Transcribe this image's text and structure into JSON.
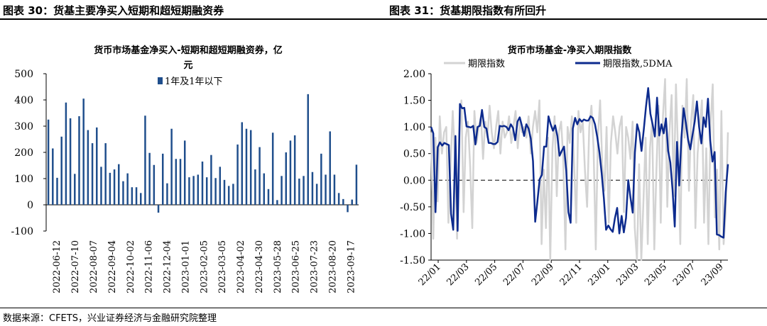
{
  "header": {
    "left_title": "图表 30：货基主要净买入短期和超短期融资券",
    "right_title": "图表 31：货基期限指数有所回升"
  },
  "footer": {
    "source": "数据来源：CFETS，兴业证券经济与金融研究院整理"
  },
  "chart_data": [
    {
      "type": "bar",
      "title": "货币市场基金净买入-短期和超短期融资券，亿元",
      "title_line1": "货币市场基金净买入-短期和超短期融资券，亿",
      "title_line2": "元",
      "legend": "1年及1年以下",
      "legend_position": "top-center",
      "ylim": [
        -100,
        500
      ],
      "yticks": [
        "500",
        "400",
        "300",
        "200",
        "100",
        "0",
        "-100"
      ],
      "xtick_labels": [
        "2022-06-12",
        "2022-07-10",
        "2022-08-07",
        "2022-09-04",
        "2022-10-02",
        "2022-11-06",
        "2022-12-04",
        "2023-01-01",
        "2023-02-05",
        "2023-03-05",
        "2023-04-02",
        "2023-04-30",
        "2023-05-28",
        "2023-06-25",
        "2023-07-23",
        "2023-08-20",
        "2023-09-17"
      ],
      "color": "#1f4e8c",
      "series": [
        {
          "values": [
            325,
            215,
            103,
            260,
            390,
            330,
            118,
            338,
            405,
            285,
            235,
            295,
            145,
            235,
            122,
            135,
            155,
            90,
            120,
            67,
            67,
            45,
            340,
            198,
            152,
            -30,
            195,
            82,
            290,
            175,
            175,
            245,
            105,
            110,
            115,
            165,
            105,
            190,
            102,
            145,
            95,
            72,
            80,
            230,
            315,
            290,
            285,
            135,
            220,
            120,
            60,
            275,
            18,
            110,
            200,
            245,
            265,
            100,
            110,
            422,
            125,
            80,
            195,
            115,
            280,
            115,
            45,
            22,
            -28,
            20,
            153
          ]
        }
      ]
    },
    {
      "type": "line",
      "title": "货币市场基金-净买入期限指数",
      "ylim": [
        -1.5,
        2.0
      ],
      "yticks": [
        "2.00",
        "1.50",
        "1.00",
        "0.50",
        "0.00",
        "-0.50",
        "-1.00",
        "-1.50"
      ],
      "xtick_labels": [
        "22/01",
        "22/03",
        "22/05",
        "22/07",
        "22/09",
        "22/11",
        "23/01",
        "23/03",
        "23/05",
        "23/07",
        "23/09"
      ],
      "grid": false,
      "legend_position": "top",
      "series": [
        {
          "name": "期限指数",
          "color": "#d3d3d3",
          "values": [
            0.9,
            -1.1,
            0.8,
            -0.4,
            1.2,
            0.5,
            0.9,
            1.0,
            -0.8,
            0.3,
            1.3,
            0.4,
            -1.1,
            0.9,
            1.5,
            -0.6,
            0.8,
            1.1,
            0.3,
            -0.9,
            1.3,
            0.7,
            1.0,
            1.2,
            0.4,
            1.1,
            0.8,
            1.4,
            0.9,
            0.6,
            1.0,
            1.3,
            0.5,
            1.1,
            0.8,
            0.9,
            1.2,
            0.7,
            1.0,
            1.3,
            0.6,
            1.1,
            0.9,
            1.0,
            0.8,
            1.2,
            0.5,
            1.0,
            1.3,
            0.9,
            1.5,
            -1.2,
            0.2,
            -0.9,
            0.8,
            -1.5,
            0.6,
            1.2,
            -0.3,
            0.9,
            1.1,
            0.4,
            -1.3,
            1.0,
            0.7,
            1.2,
            0.3,
            -0.8,
            1.3,
            0.9,
            1.1,
            0.2,
            -0.5,
            1.0,
            1.4,
            0.6,
            -1.3,
            0.8,
            1.5,
            0.3,
            -0.2,
            1.0,
            -0.8,
            0.7,
            1.2,
            0.9,
            0.5,
            1.0,
            1.2,
            -0.6,
            1.0,
            0.8,
            0.4,
            1.1,
            -0.9,
            -1.5,
            0.3,
            -1.5,
            -0.4,
            0.8,
            -1.2,
            0.6,
            1.1,
            -1.3,
            0.2,
            1.4,
            -0.8,
            1.2,
            1.9,
            -0.5,
            0.9,
            1.6,
            -0.3,
            1.8,
            0.5,
            -1.2,
            1.4,
            0.8,
            1.9,
            -0.2,
            1.1,
            1.6,
            -0.9,
            0.5,
            1.0,
            1.5,
            -0.8,
            0.6,
            -1.2,
            1.1,
            1.8,
            -0.7,
            0.2,
            -1.3,
            1.3,
            -1.2,
            -0.6,
            0.9
          ]
        },
        {
          "name": "期限指数,5DMA",
          "color": "#0d2b8e",
          "values": [
            1.0,
            0.88,
            -0.6,
            0.62,
            0.71,
            0.65,
            0.7,
            0.68,
            0.66,
            -0.63,
            -0.93,
            0.83,
            -0.95,
            1.43,
            1.35,
            1.36,
            1.01,
            1.0,
            0.99,
            1.02,
            0.67,
            1.0,
            1.02,
            1.32,
            1.0,
            0.97,
            0.7,
            0.7,
            0.68,
            0.68,
            0.72,
            1.02,
            1.01,
            1.02,
            1.0,
            0.94,
            1.05,
            0.98,
            0.75,
            1.1,
            1.18,
            1.02,
            0.83,
            1.05,
            0.97,
            0.78,
            0.36,
            -0.78,
            -0.4,
            0.02,
            0.1,
            0.63,
            0.63,
            1.2,
            1.05,
            0.93,
            1.03,
            0.83,
            0.46,
            0.55,
            0.63,
            0.18,
            -0.6,
            -0.8,
            0.97,
            1.17,
            1.05,
            1.15,
            1.1,
            1.14,
            1.12,
            1.12,
            1.2,
            1.17,
            1.05,
            0.81,
            0.52,
            0.13,
            -0.34,
            -0.93,
            -0.85,
            -0.92,
            -0.97,
            -0.71,
            -0.52,
            -1.0,
            -0.67,
            -0.98,
            -0.71,
            0.0,
            -0.32,
            -0.61,
            0.52,
            1.05,
            0.9,
            0.55,
            0.95,
            1.38,
            1.73,
            1.25,
            1.05,
            0.82,
            1.55,
            0.84,
            1.05,
            0.88,
            1.16,
            0.55,
            0.33,
            -0.18,
            -0.87,
            0.72,
            -0.1,
            0.8,
            1.35,
            1.08,
            0.76,
            0.58,
            0.85,
            1.1,
            1.48,
            1.0,
            0.69,
            1.18,
            1.0,
            1.53,
            0.75,
            0.35,
            0.53,
            -1.02,
            -1.03,
            -1.06,
            -1.08,
            -0.22,
            0.3
          ]
        }
      ]
    }
  ]
}
